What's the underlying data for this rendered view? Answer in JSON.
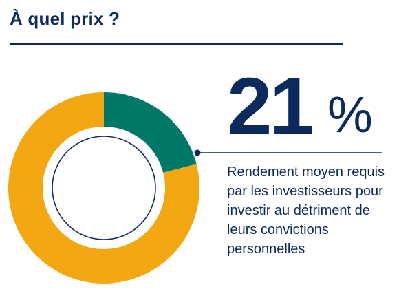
{
  "header": {
    "title": "À quel prix ?"
  },
  "highlight": {
    "value": "21",
    "unit": "%",
    "description": "Rendement moyen requis par les investisseurs pour investir au détriment de leurs convictions personnelles"
  },
  "chart_data": {
    "type": "pie",
    "style": "donut",
    "start_angle_deg": 0,
    "direction": "clockwise",
    "slices": [
      {
        "value": 21,
        "color": "#007868"
      },
      {
        "value": 79,
        "color": "#f3a712"
      }
    ],
    "inner_ring_color": "#0d2a5c",
    "pointer_color": "#0d2a5c"
  }
}
